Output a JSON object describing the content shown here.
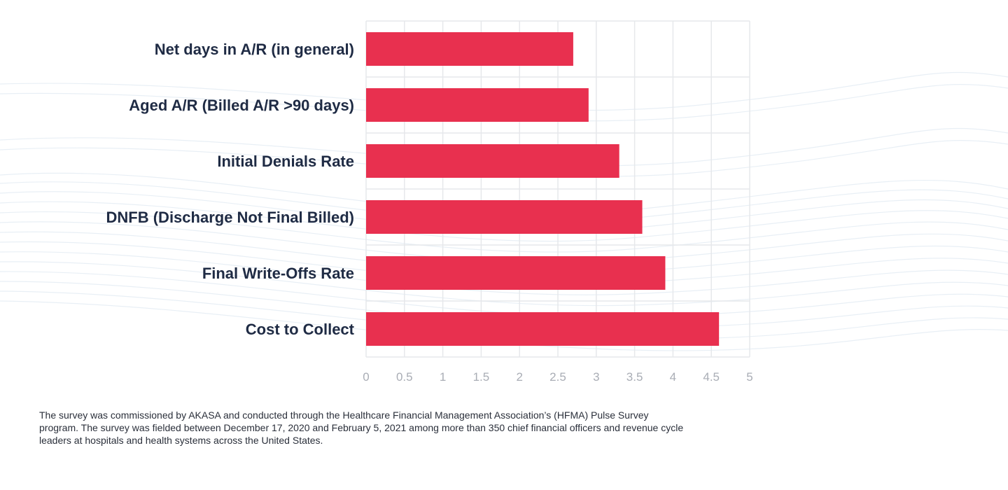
{
  "chart_data": {
    "type": "bar",
    "orientation": "horizontal",
    "title": "",
    "xlabel": "",
    "ylabel": "",
    "categories": [
      "Net days in A/R (in general)",
      "Aged A/R (Billed A/R >90 days)",
      "Initial Denials Rate",
      "DNFB (Discharge Not Final Billed)",
      "Final Write-Offs Rate",
      "Cost to Collect"
    ],
    "values": [
      2.7,
      2.9,
      3.3,
      3.6,
      3.9,
      4.6
    ],
    "xlim": [
      0,
      5
    ],
    "ticks": [
      "0",
      "0.5",
      "1",
      "1.5",
      "2",
      "2.5",
      "3",
      "3.5",
      "4",
      "4.5",
      "5"
    ],
    "grid": true,
    "bar_color": "#e8304f",
    "grid_color": "#e6e8eb"
  },
  "footnote": "The survey was commissioned by AKASA and conducted through the Healthcare Financial Management Association’s (HFMA) Pulse Survey program. The survey was fielded between December 17, 2020 and February 5, 2021 among more than 350 chief financial officers and revenue cycle leaders at hospitals and health systems across the United States."
}
